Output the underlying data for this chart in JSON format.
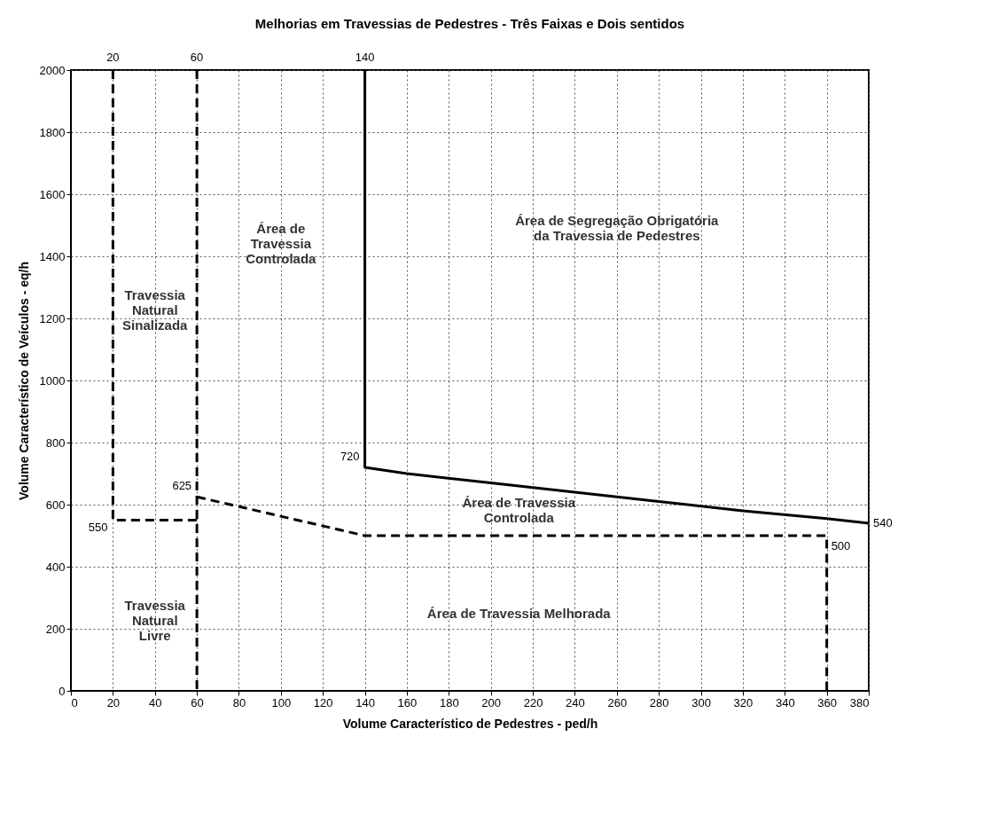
{
  "chart_data": {
    "type": "line",
    "title": "Melhorias em Travessias de Pedestres - Três Faixas e Dois sentidos",
    "xlabel": "Volume Característico de Pedestres - ped/h",
    "ylabel": "Volume Característico de Veículos - eq/h",
    "xlim": [
      0,
      380
    ],
    "xticks": [
      0,
      20,
      40,
      60,
      80,
      100,
      120,
      140,
      160,
      180,
      200,
      220,
      240,
      260,
      280,
      300,
      320,
      340,
      360,
      380
    ],
    "ylim": [
      0,
      2000
    ],
    "yticks": [
      0,
      200,
      400,
      600,
      800,
      1000,
      1200,
      1400,
      1600,
      1800,
      2000
    ],
    "grid": true,
    "series": [
      {
        "color": "#000000",
        "line_style": "dashed",
        "x": [
          20,
          20,
          60
        ],
        "values": [
          2000,
          550,
          550
        ]
      },
      {
        "color": "#000000",
        "line_style": "dashed",
        "x": [
          60,
          60
        ],
        "values": [
          2000,
          0
        ]
      },
      {
        "color": "#000000",
        "line_style": "dashed",
        "x": [
          60,
          140,
          360,
          360
        ],
        "values": [
          625,
          500,
          500,
          0
        ]
      },
      {
        "color": "#000000",
        "line_style": "solid",
        "x": [
          140,
          140,
          160,
          200,
          240,
          280,
          320,
          360,
          380
        ],
        "values": [
          2000,
          720,
          700,
          670,
          640,
          610,
          580,
          555,
          540
        ]
      }
    ],
    "annotations": [
      {
        "text": "20",
        "x": 20,
        "y": 2000
      },
      {
        "text": "60",
        "x": 60,
        "y": 2000
      },
      {
        "text": "140",
        "x": 140,
        "y": 2000
      },
      {
        "text": "550",
        "x": 20,
        "y": 550
      },
      {
        "text": "625",
        "x": 60,
        "y": 625
      },
      {
        "text": "720",
        "x": 140,
        "y": 720
      },
      {
        "text": "540",
        "x": 380,
        "y": 540
      },
      {
        "text": "500",
        "x": 360,
        "y": 500
      },
      "Travessia\nNatural\nSinalizada",
      "Área de\nTravessia\nControlada",
      "Área de Segregação Obrigatória\nda Travessia de Pedestres",
      "Área de Travessia\nControlada",
      "Travessia\nNatural\nLivre",
      "Área de Travessia Melhorada"
    ]
  }
}
